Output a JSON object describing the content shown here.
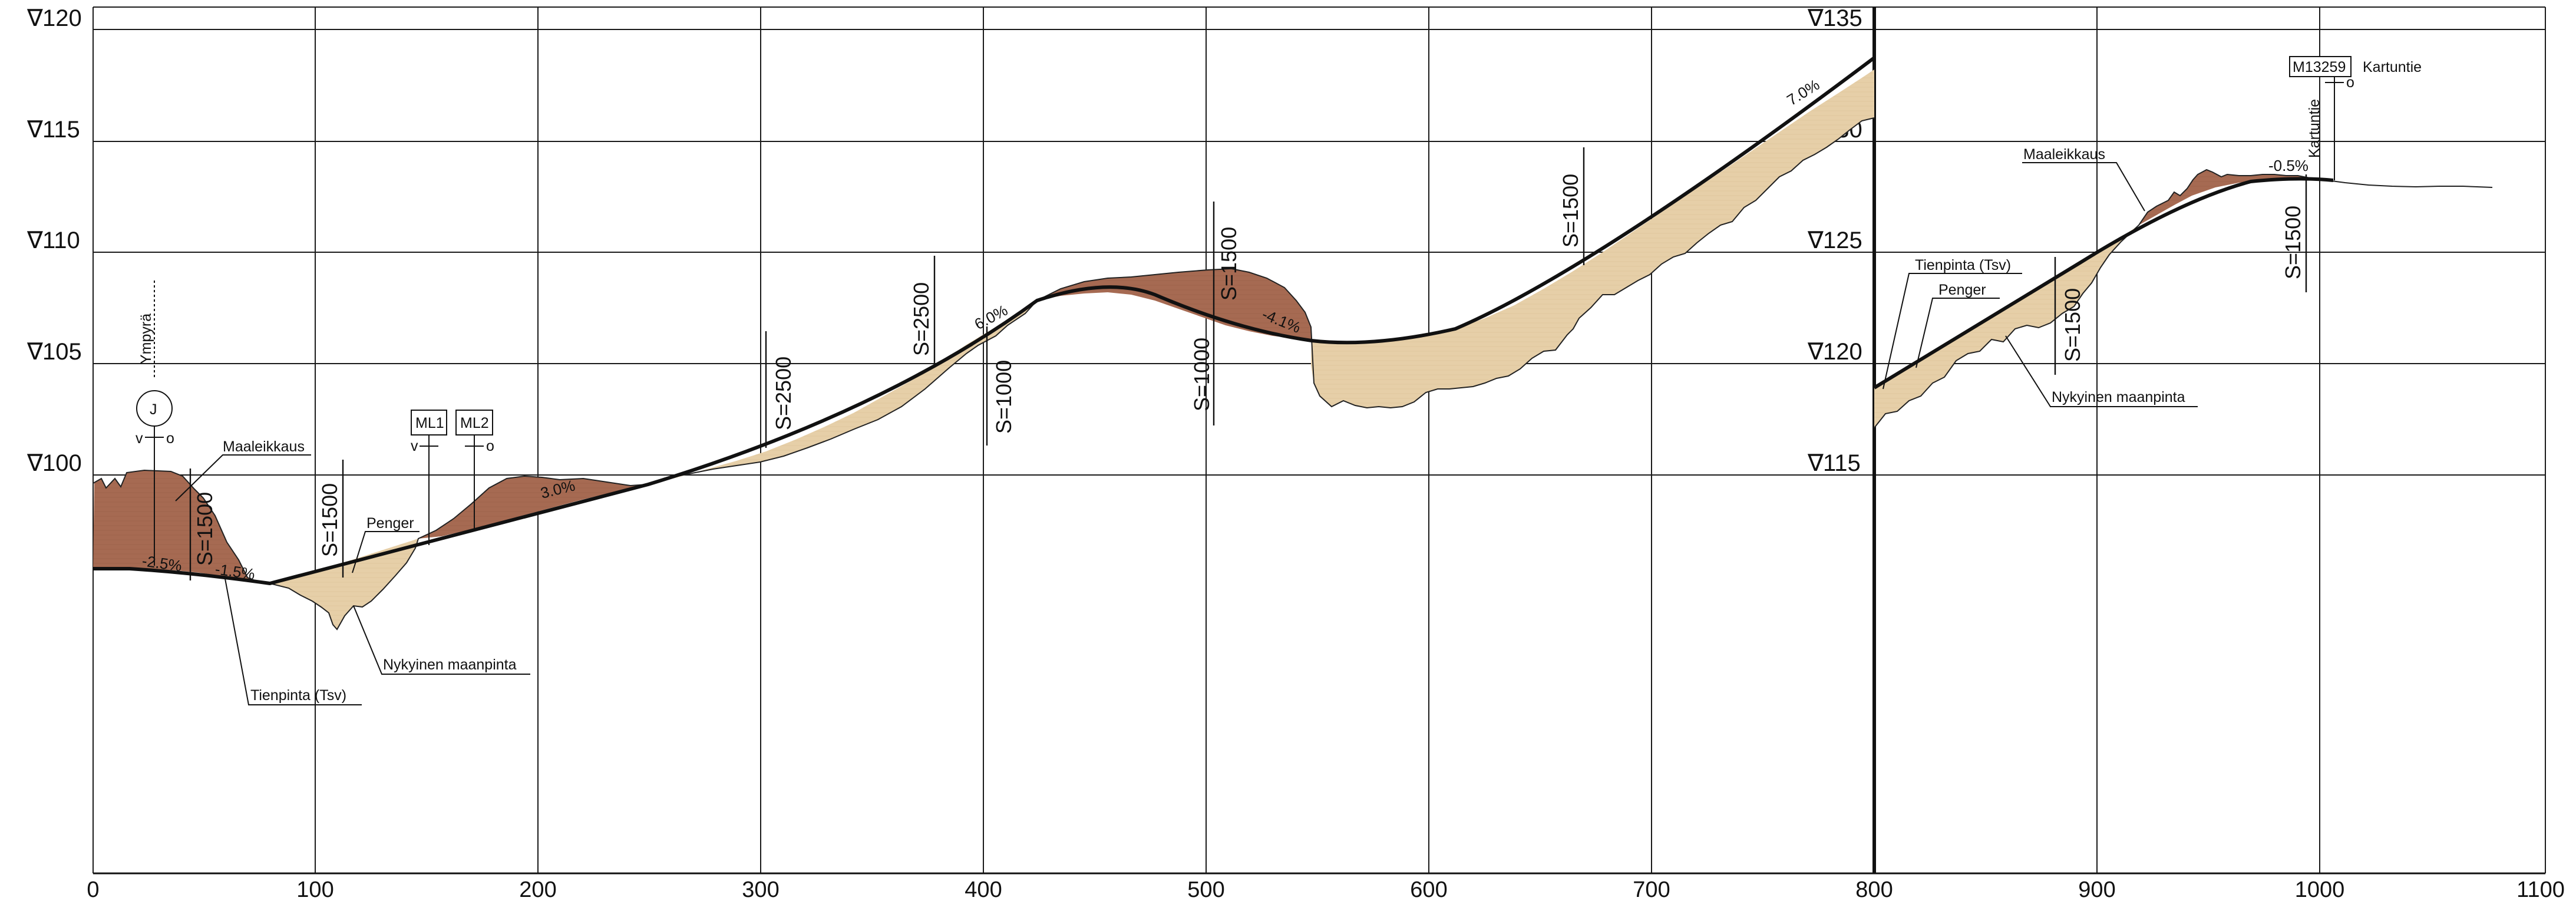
{
  "x_axis": {
    "ticks": [
      "0",
      "100",
      "200",
      "300",
      "400",
      "500",
      "600",
      "700",
      "800",
      "900",
      "1000",
      "1100"
    ]
  },
  "left_profile": {
    "elevations": [
      {
        "symbol": "∇",
        "value": "120"
      },
      {
        "symbol": "∇",
        "value": "115"
      },
      {
        "symbol": "∇",
        "value": "110"
      },
      {
        "symbol": "∇",
        "value": "105"
      },
      {
        "symbol": "∇",
        "value": "100"
      }
    ],
    "labels": {
      "cut": "Maaleikkaus",
      "fill": "Penger",
      "ground": "Nykyinen maanpinta",
      "road": "Tienpinta (Tsv)",
      "junction_type": "Ympyrä",
      "junction_symbol": "J",
      "v": "v",
      "o": "o",
      "ml1": "ML1",
      "ml2": "ML2"
    },
    "curves": [
      "S=1500",
      "S=1500",
      "S=2500",
      "S=2500",
      "S=1000",
      "S=1000",
      "S=1500",
      "S=1500"
    ],
    "grades": [
      "-2.5%",
      "-1.5%",
      "3.0%",
      "6.0%",
      "-4.1%",
      "7.0%"
    ]
  },
  "right_profile": {
    "elevations": [
      {
        "symbol": "∇",
        "value": "135"
      },
      {
        "symbol": "∇",
        "value": "130"
      },
      {
        "symbol": "∇",
        "value": "125"
      },
      {
        "symbol": "∇",
        "value": "120"
      },
      {
        "symbol": "∇",
        "value": "115"
      }
    ],
    "labels": {
      "cut": "Maaleikkaus",
      "fill": "Penger",
      "ground": "Nykyinen maanpinta",
      "road": "Tienpinta (Tsv)",
      "crossing_road": "Kartuntie",
      "crossing_id": "M13259",
      "crossing_name": "Kartuntie",
      "o": "o"
    },
    "curves": [
      "S=1500",
      "S=1500"
    ],
    "grades": [
      "-0.5%"
    ]
  },
  "colors": {
    "cut": "#a66a52",
    "fill": "#e6cfa8",
    "grid": "#1a1a1a"
  }
}
